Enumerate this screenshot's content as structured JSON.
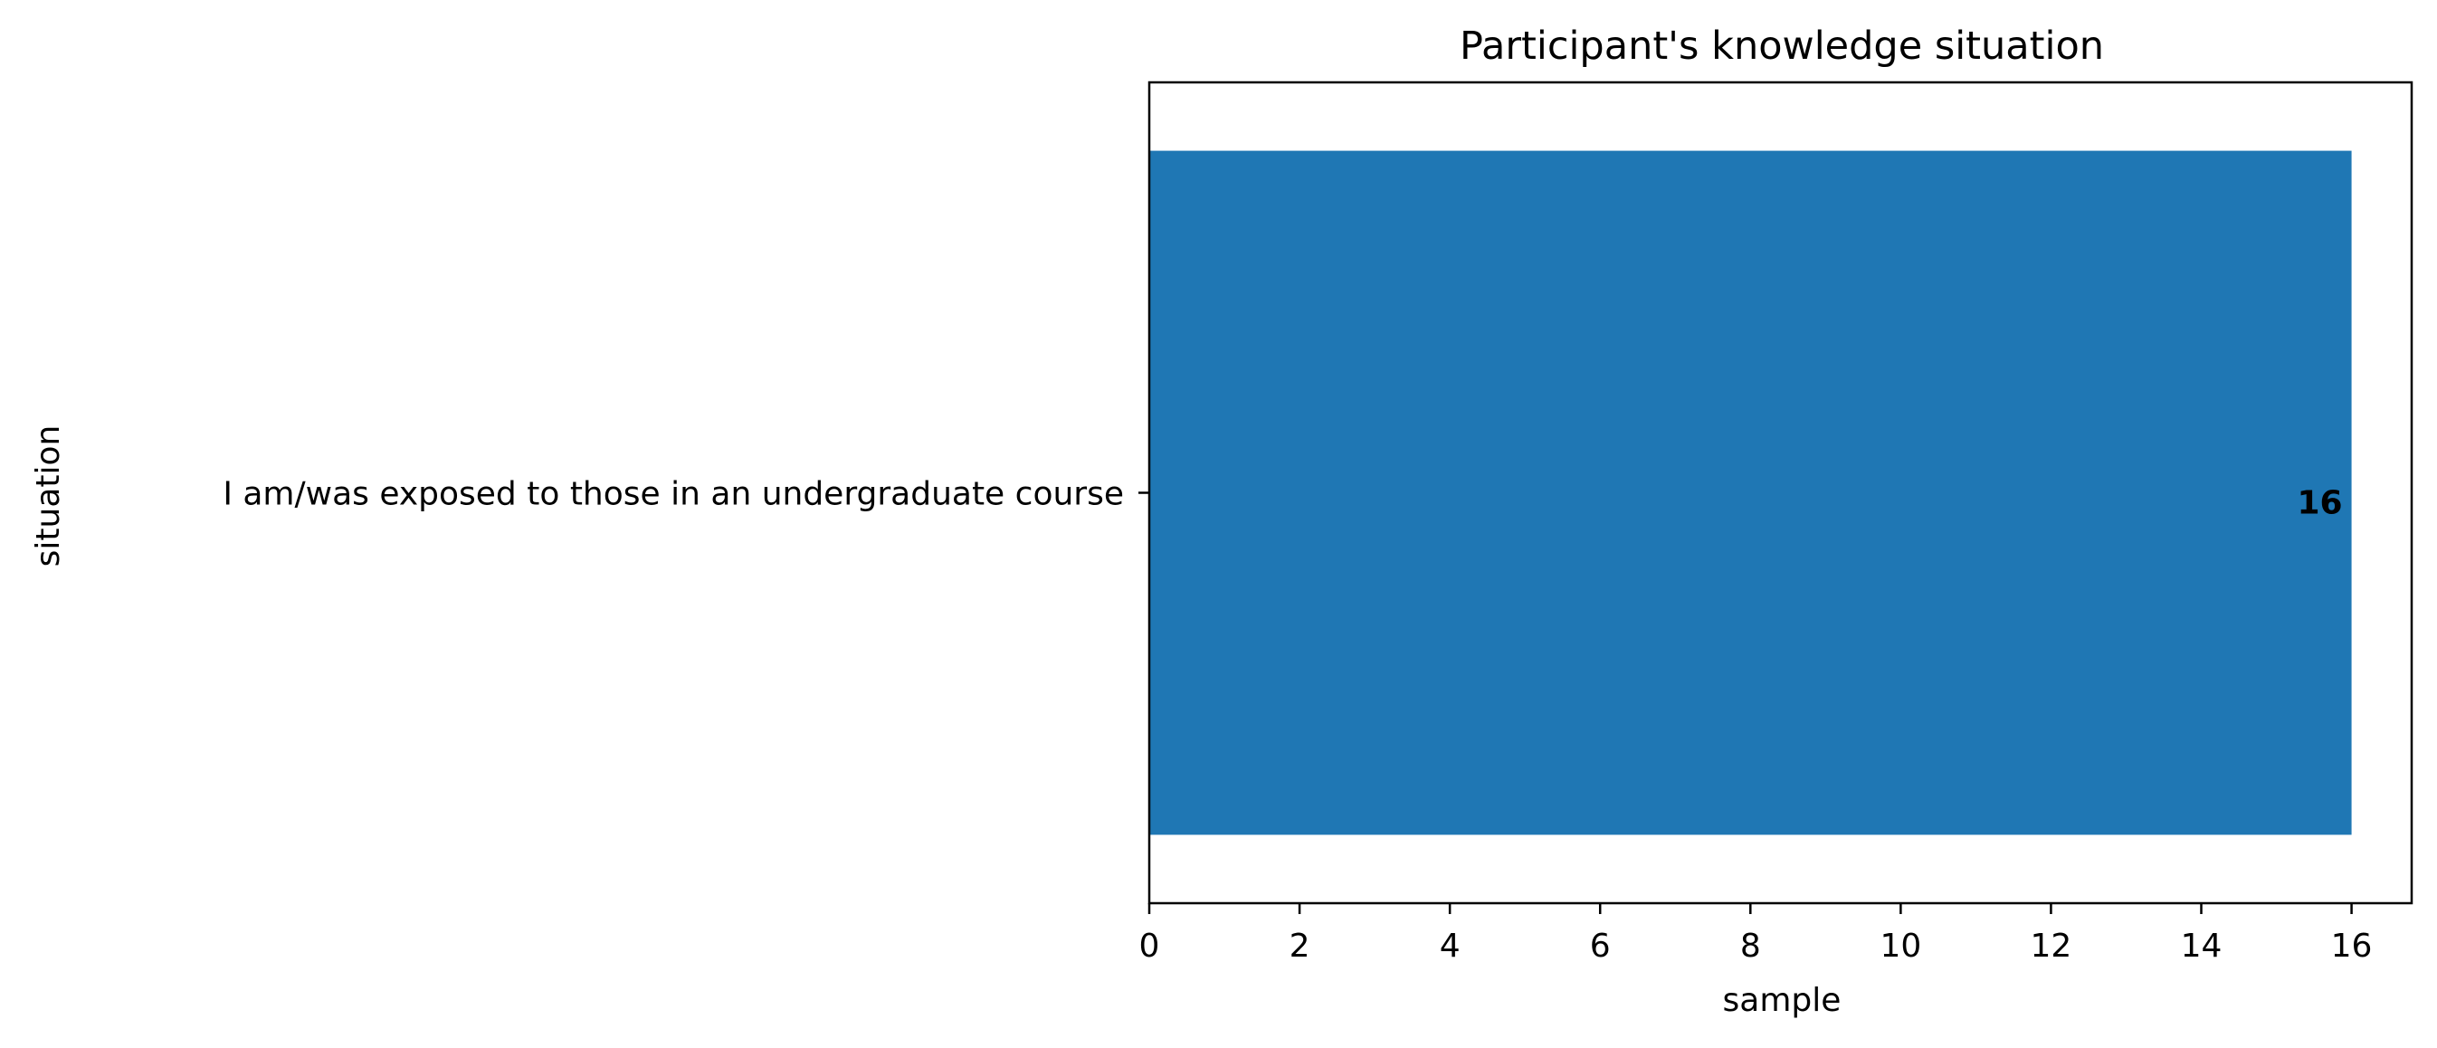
{
  "chart_data": {
    "type": "bar",
    "orientation": "horizontal",
    "title": "Participant's knowledge situation",
    "xlabel": "sample",
    "ylabel": "situation",
    "categories": [
      "I am/was exposed to those in an undergraduate course"
    ],
    "values": [
      16
    ],
    "data_labels": [
      "16"
    ],
    "xlim": [
      0,
      16.8
    ],
    "xticks": [
      0,
      2,
      4,
      6,
      8,
      10,
      12,
      14,
      16
    ],
    "grid": false,
    "legend": "none",
    "bar_color": "#1f77b4"
  }
}
